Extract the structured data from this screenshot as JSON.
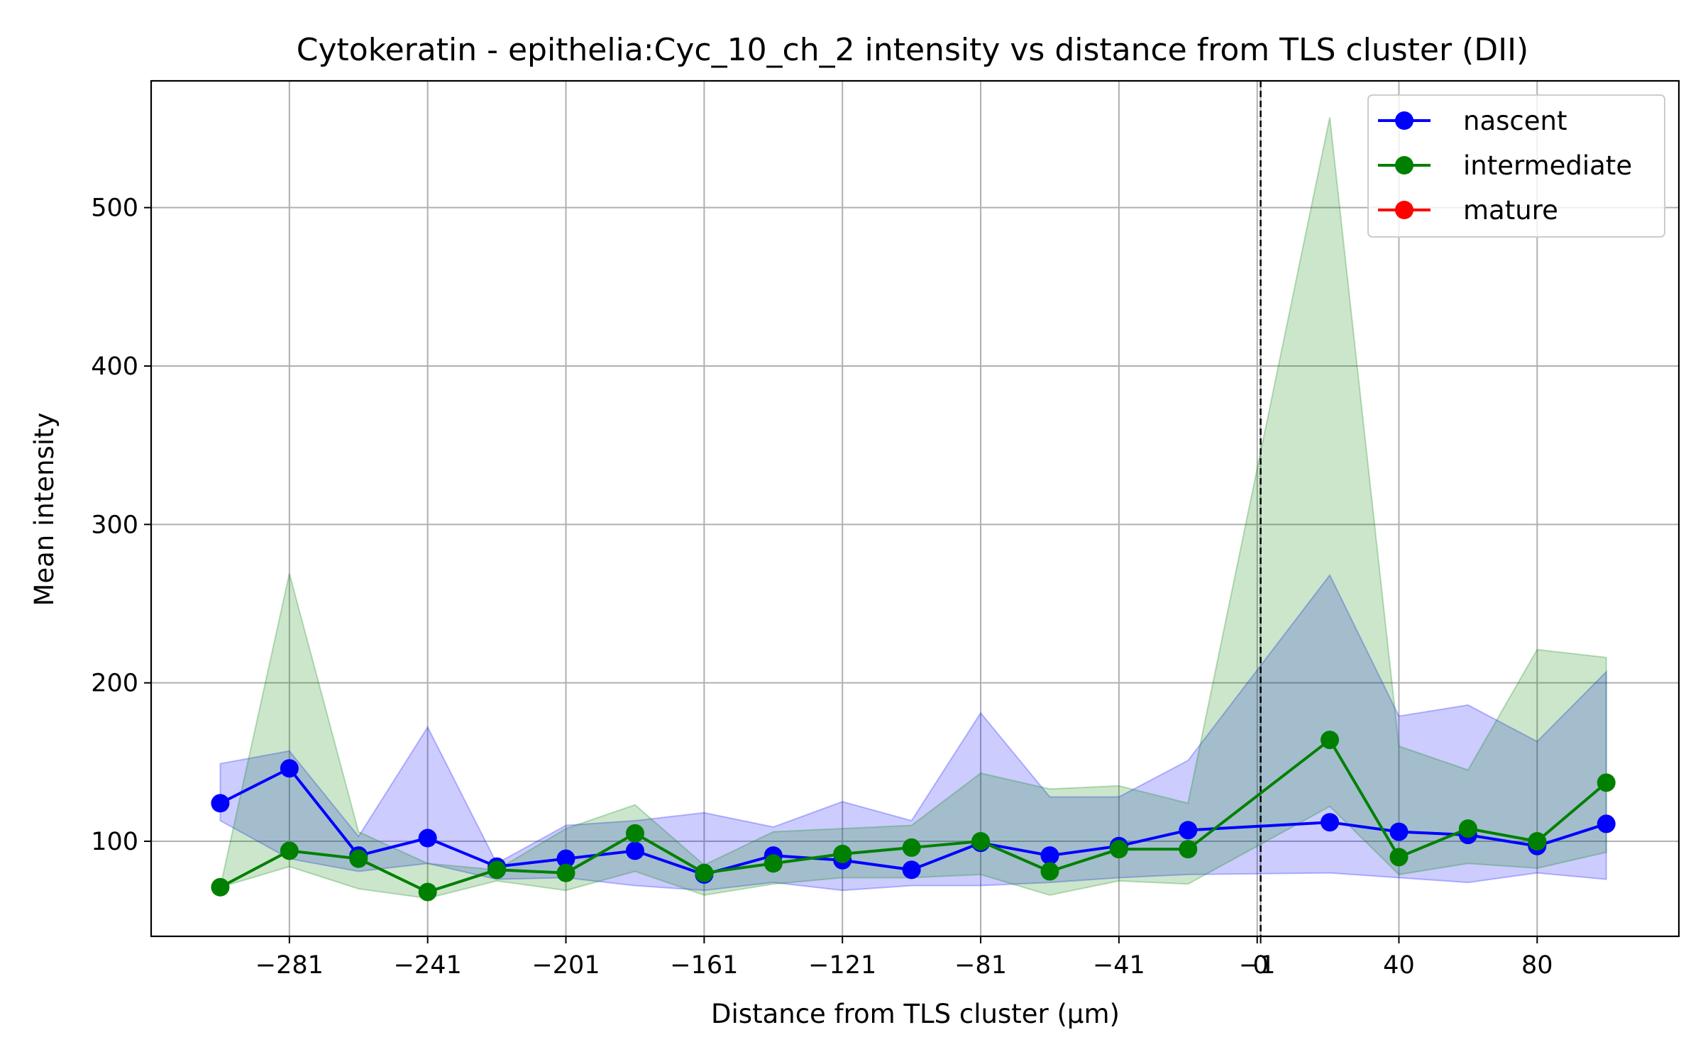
{
  "chart_data": {
    "type": "line",
    "title": "Cytokeratin - epithelia:Cyc_10_ch_2 intensity vs distance from TLS cluster (DII)",
    "xlabel": "Distance from TLS cluster (μm)",
    "ylabel": "Mean intensity",
    "xlim": [
      -321,
      121
    ],
    "ylim": [
      40,
      580
    ],
    "x_ticks": [
      -281,
      -241,
      -201,
      -161,
      -121,
      -81,
      -41,
      -1,
      0,
      40,
      80
    ],
    "x_tick_labels": [
      "−281",
      "−241",
      "−201",
      "−161",
      "−121",
      "−81",
      "−41",
      "−1",
      "0",
      "40",
      "80"
    ],
    "y_ticks": [
      100,
      200,
      300,
      400,
      500
    ],
    "y_tick_labels": [
      "100",
      "200",
      "300",
      "400",
      "500"
    ],
    "grid": true,
    "legend_position": "top-right",
    "reference_line_x": 0,
    "series": [
      {
        "name": "nascent",
        "color": "#0000ff",
        "x": [
          -301,
          -281,
          -261,
          -241,
          -221,
          -201,
          -181,
          -161,
          -141,
          -121,
          -101,
          -81,
          -61,
          -41,
          -21,
          20,
          40,
          60,
          80,
          100
        ],
        "y": [
          124,
          146,
          91,
          102,
          84,
          89,
          94,
          79,
          91,
          88,
          82,
          99,
          91,
          97,
          107,
          112,
          106,
          104,
          97,
          111
        ],
        "upper": [
          149,
          157,
          103,
          172,
          86,
          110,
          113,
          118,
          109,
          125,
          113,
          181,
          128,
          128,
          151,
          268,
          179,
          186,
          163,
          207
        ],
        "lower": [
          113,
          89,
          81,
          86,
          76,
          77,
          72,
          69,
          74,
          69,
          72,
          72,
          74,
          77,
          79,
          80,
          77,
          74,
          80,
          76
        ]
      },
      {
        "name": "intermediate",
        "color": "#008000",
        "x": [
          -301,
          -281,
          -261,
          -241,
          -221,
          -201,
          -181,
          -161,
          -141,
          -121,
          -101,
          -81,
          -61,
          -41,
          -21,
          20,
          40,
          60,
          80,
          100
        ],
        "y": [
          71,
          94,
          89,
          68,
          82,
          80,
          105,
          80,
          86,
          92,
          96,
          100,
          81,
          95,
          95,
          164,
          90,
          108,
          100,
          137
        ],
        "upper": [
          71,
          269,
          106,
          86,
          82,
          108,
          123,
          85,
          106,
          108,
          110,
          143,
          133,
          135,
          124,
          557,
          160,
          145,
          221,
          216
        ],
        "lower": [
          71,
          84,
          70,
          64,
          75,
          69,
          81,
          66,
          73,
          77,
          77,
          79,
          66,
          75,
          73,
          122,
          79,
          86,
          83,
          93
        ]
      },
      {
        "name": "mature",
        "color": "#ff0000",
        "x": [],
        "y": [],
        "upper": [],
        "lower": []
      }
    ]
  }
}
